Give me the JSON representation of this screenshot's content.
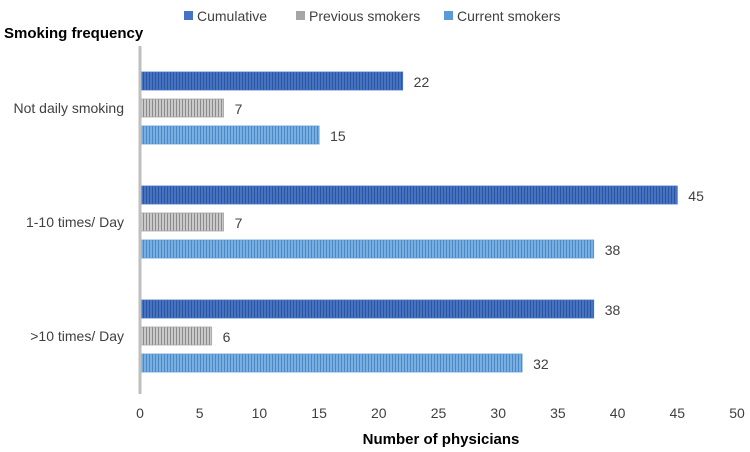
{
  "chart_data": {
    "type": "bar",
    "orientation": "horizontal",
    "ylabel": "Smoking frequency",
    "xlabel": "Number of physicians",
    "xlim": [
      0,
      50
    ],
    "xticks": [
      0,
      5,
      10,
      15,
      20,
      25,
      30,
      35,
      40,
      45,
      50
    ],
    "grid": false,
    "legend_position": "top",
    "categories": [
      "Not daily smoking",
      "1-10 times/ Day",
      ">10 times/ Day"
    ],
    "series": [
      {
        "name": "Cumulative",
        "color": "#4472C4",
        "values": [
          22,
          45,
          38
        ]
      },
      {
        "name": "Previous smokers",
        "color": "#A5A5A5",
        "values": [
          7,
          7,
          6
        ]
      },
      {
        "name": "Current smokers",
        "color": "#5B9BD5",
        "values": [
          15,
          38,
          32
        ]
      }
    ]
  }
}
